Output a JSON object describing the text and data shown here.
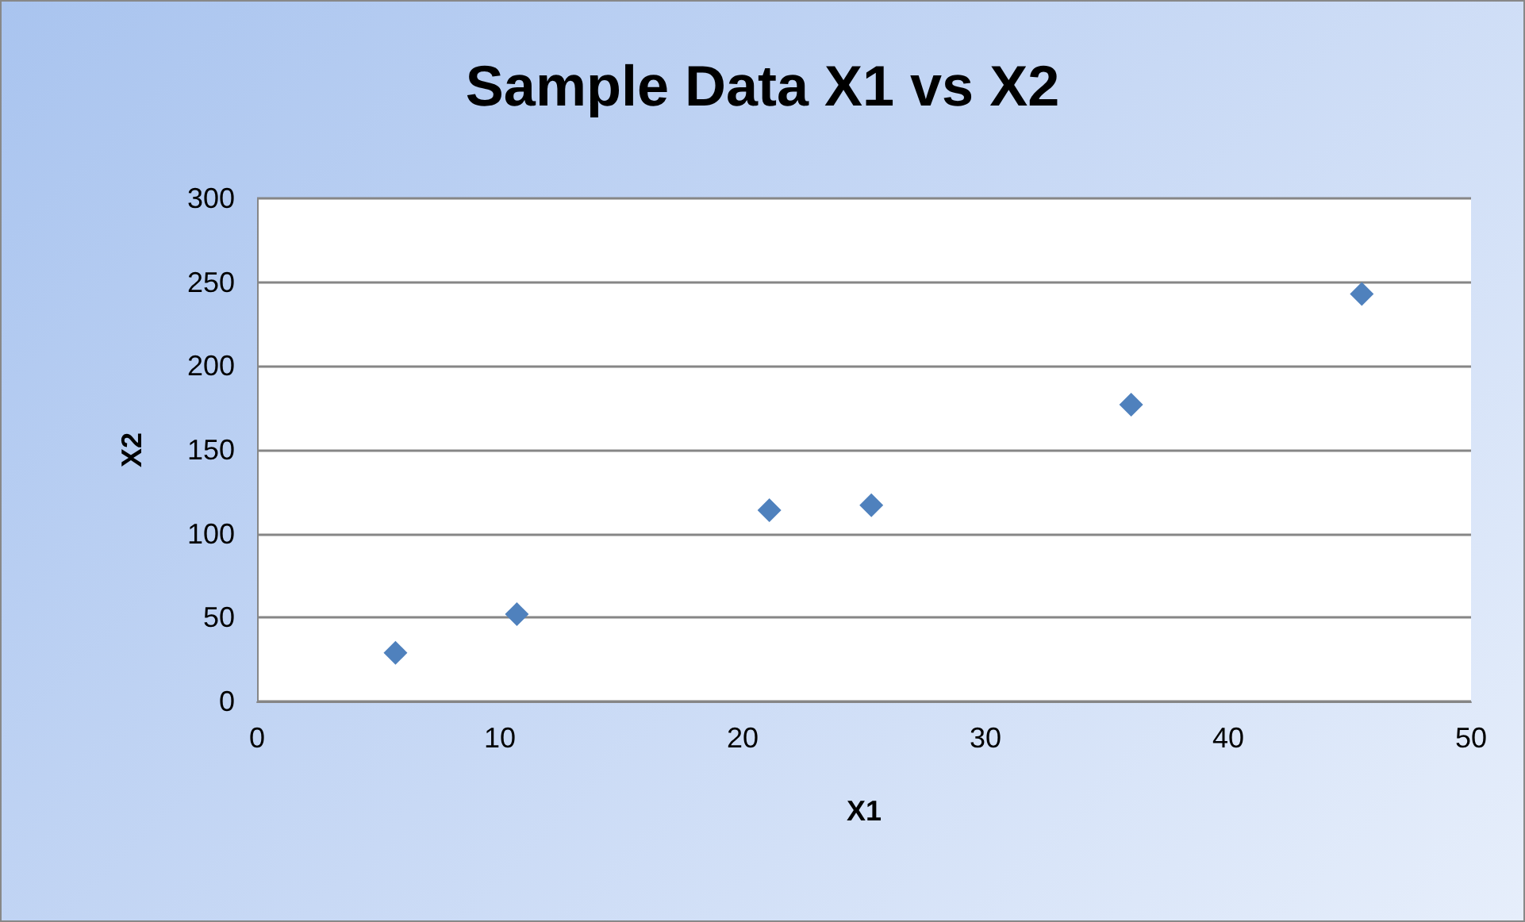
{
  "chart_data": {
    "type": "scatter",
    "title": "Sample Data X1 vs X2",
    "xlabel": "X1",
    "ylabel": "X2",
    "x": [
      5.7,
      10.7,
      21.1,
      25.3,
      36.0,
      45.5
    ],
    "series": [
      {
        "color": "#4f81bd",
        "values": [
          29,
          52,
          114,
          117,
          177,
          243
        ]
      }
    ],
    "xlim": [
      0,
      50
    ],
    "xticks": [
      0,
      10,
      20,
      30,
      40,
      50
    ],
    "ylim": [
      0,
      300
    ],
    "yticks": [
      0,
      50,
      100,
      150,
      200,
      250,
      300
    ],
    "grid": "y",
    "marker": "diamond"
  }
}
